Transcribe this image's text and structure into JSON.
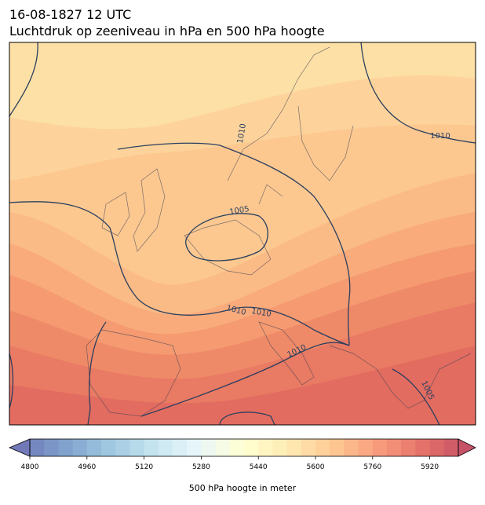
{
  "header": {
    "title": "16-08-1827 12 UTC",
    "subtitle": "Luchtdruk op zeeniveau in hPa en 500 hPa hoogte"
  },
  "map": {
    "contour_labels": [
      1010,
      1010,
      1005,
      1010,
      1010,
      1010,
      1005
    ]
  },
  "colorbar": {
    "range": [
      4800,
      6000
    ],
    "step": 40,
    "ticks": [
      4800,
      4960,
      5120,
      5280,
      5440,
      5600,
      5760,
      5920
    ],
    "label": "500 hPa hoogte in meter"
  }
}
